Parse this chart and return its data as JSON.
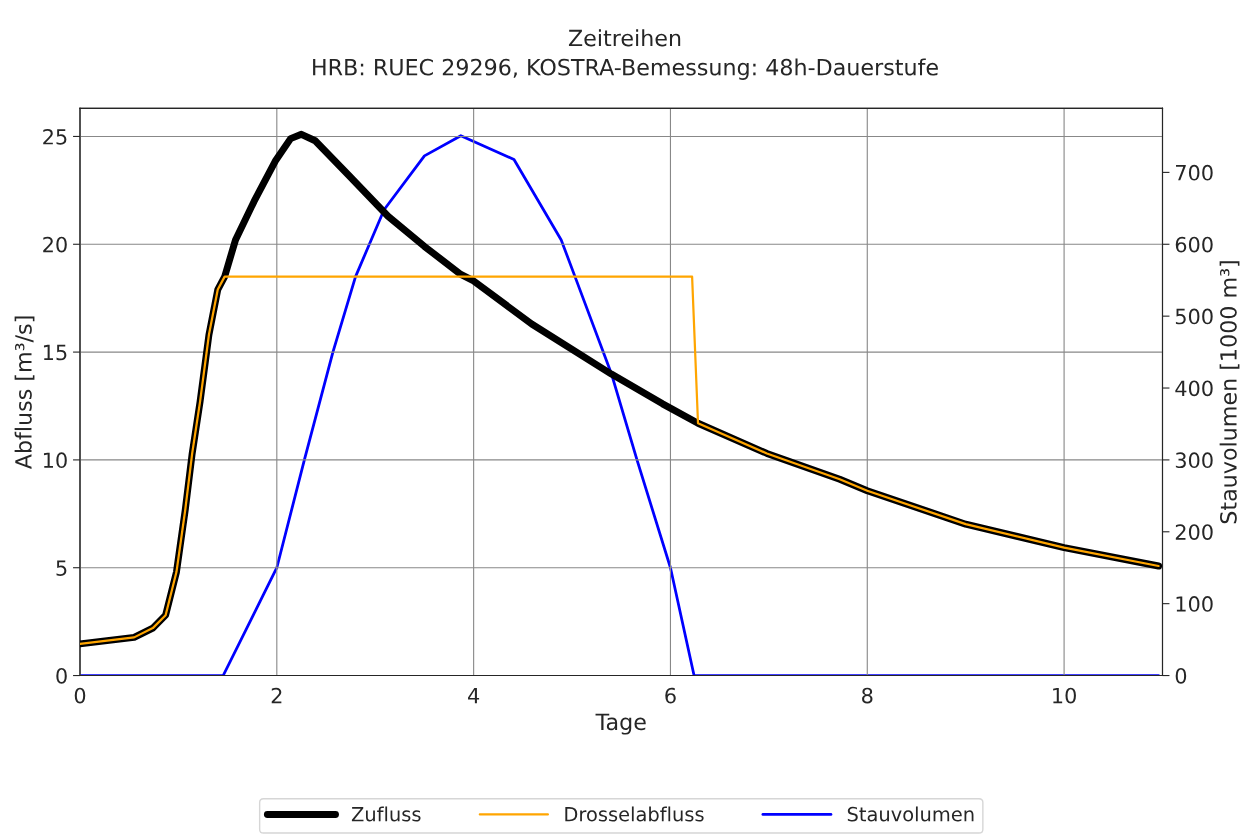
{
  "chart_data": {
    "type": "line",
    "title": "Zeitreihen",
    "subtitle": "HRB: RUEC 29296, KOSTRA-Bemessung: 48h-Dauerstufe",
    "xlabel": "Tage",
    "ylabel": "Abfluss [m³/s]",
    "y2label": "Stauvolumen [1000 m³]",
    "xlim": [
      0,
      11
    ],
    "xticks": [
      0,
      2,
      4,
      6,
      8,
      10
    ],
    "ylim": [
      0,
      26.3
    ],
    "yticks": [
      0,
      5,
      10,
      15,
      20,
      25
    ],
    "y2lim": [
      0,
      789
    ],
    "y2ticks": [
      0,
      100,
      200,
      300,
      400,
      500,
      600,
      700
    ],
    "grid": true,
    "legend": "bottom",
    "series": [
      {
        "name": "Zufluss",
        "color": "#000000",
        "x": [
          0,
          0.55,
          0.74,
          0.87,
          0.98,
          1.07,
          1.14,
          1.22,
          1.31,
          1.4,
          1.47,
          1.58,
          1.77,
          1.99,
          2.14,
          2.25,
          2.39,
          2.73,
          3.13,
          3.5,
          3.87,
          4.0,
          4.59,
          5.4,
          5.92,
          6.28,
          6.98,
          7.72,
          8.0,
          9.0,
          10.0,
          10.96
        ],
        "values": [
          1.47,
          1.77,
          2.2,
          2.8,
          4.8,
          7.7,
          10.3,
          12.7,
          15.8,
          17.9,
          18.5,
          20.2,
          22.0,
          23.9,
          24.9,
          25.1,
          24.8,
          23.2,
          21.3,
          19.9,
          18.6,
          18.3,
          16.3,
          13.98,
          12.6,
          11.7,
          10.3,
          9.1,
          8.57,
          7.02,
          5.93,
          5.08
        ]
      },
      {
        "name": "Drosselabfluss",
        "color": "#ffa500",
        "x": [
          0,
          0.55,
          0.74,
          0.87,
          0.98,
          1.07,
          1.14,
          1.22,
          1.31,
          1.4,
          1.47,
          6.22,
          6.28,
          6.98,
          7.72,
          8.0,
          9.0,
          10.0,
          10.96
        ],
        "values": [
          1.47,
          1.77,
          2.2,
          2.8,
          4.8,
          7.7,
          10.3,
          12.7,
          15.8,
          17.9,
          18.5,
          18.5,
          11.7,
          10.3,
          9.1,
          8.57,
          7.02,
          5.93,
          5.08
        ]
      },
      {
        "name": "Stauvolumen",
        "color": "#0000ff",
        "axis": "y2",
        "x": [
          0,
          1.455,
          2.0,
          2.28,
          2.57,
          2.8,
          3.09,
          3.5,
          3.87,
          4.41,
          4.89,
          5.03,
          5.4,
          5.66,
          6.0,
          6.24,
          10.96
        ],
        "values": [
          0,
          0,
          150,
          300,
          450,
          555,
          648,
          723,
          751,
          718,
          606,
          555,
          420,
          300,
          150,
          0,
          0
        ]
      }
    ]
  }
}
